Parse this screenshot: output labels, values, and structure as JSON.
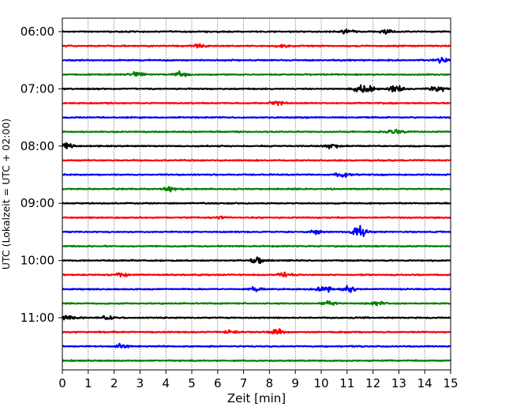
{
  "chart_data": {
    "type": "line",
    "chart_kind": "helicorder (seismogram drum plot)",
    "xlabel": "Zeit  [min]",
    "ylabel": "UTC (Lokalzeit = UTC + 02:00)",
    "xlim": [
      0,
      15
    ],
    "x_ticks": [
      "0",
      "1",
      "2",
      "3",
      "4",
      "5",
      "6",
      "7",
      "8",
      "9",
      "10",
      "11",
      "12",
      "13",
      "14",
      "15"
    ],
    "y_ticks": [
      "06:00",
      "07:00",
      "08:00",
      "09:00",
      "10:00",
      "11:00"
    ],
    "y_tick_rows": [
      0,
      4,
      8,
      12,
      16,
      20
    ],
    "grid": "vertical dotted lines at each minute",
    "legend": "none",
    "trace_minutes": 15,
    "row_start_times": [
      "06:00",
      "06:15",
      "06:30",
      "06:45",
      "07:00",
      "07:15",
      "07:30",
      "07:45",
      "08:00",
      "08:15",
      "08:30",
      "08:45",
      "09:00",
      "09:15",
      "09:30",
      "09:45",
      "10:00",
      "10:15",
      "10:30",
      "10:45",
      "11:00",
      "11:15",
      "11:30",
      "11:45"
    ],
    "color_cycle": [
      "#000000",
      "#ff0000",
      "#0000ff",
      "#008000"
    ],
    "events": [
      {
        "row": 0,
        "minute": 11.0,
        "amplitude": 0.45
      },
      {
        "row": 0,
        "minute": 12.5,
        "amplitude": 0.4
      },
      {
        "row": 1,
        "minute": 5.3,
        "amplitude": 0.5
      },
      {
        "row": 1,
        "minute": 8.5,
        "amplitude": 0.3
      },
      {
        "row": 3,
        "minute": 4.6,
        "amplitude": 0.6
      },
      {
        "row": 3,
        "minute": 2.9,
        "amplitude": 0.5
      },
      {
        "row": 2,
        "minute": 14.6,
        "amplitude": 0.5
      },
      {
        "row": 4,
        "minute": 11.5,
        "amplitude": 0.8
      },
      {
        "row": 4,
        "minute": 11.9,
        "amplitude": 0.7
      },
      {
        "row": 4,
        "minute": 12.9,
        "amplitude": 0.8
      },
      {
        "row": 4,
        "minute": 14.5,
        "amplitude": 0.9
      },
      {
        "row": 5,
        "minute": 8.3,
        "amplitude": 0.6
      },
      {
        "row": 7,
        "minute": 12.9,
        "amplitude": 0.5
      },
      {
        "row": 8,
        "minute": 0.15,
        "amplitude": 0.7
      },
      {
        "row": 8,
        "minute": 10.4,
        "amplitude": 0.45
      },
      {
        "row": 10,
        "minute": 10.8,
        "amplitude": 0.6
      },
      {
        "row": 11,
        "minute": 4.2,
        "amplitude": 0.5
      },
      {
        "row": 13,
        "minute": 6.2,
        "amplitude": 0.3
      },
      {
        "row": 14,
        "minute": 9.8,
        "amplitude": 0.6
      },
      {
        "row": 14,
        "minute": 11.45,
        "amplitude": 1.4
      },
      {
        "row": 16,
        "minute": 7.55,
        "amplitude": 0.7
      },
      {
        "row": 17,
        "minute": 2.3,
        "amplitude": 0.45
      },
      {
        "row": 17,
        "minute": 8.6,
        "amplitude": 0.55
      },
      {
        "row": 18,
        "minute": 7.5,
        "amplitude": 0.45
      },
      {
        "row": 18,
        "minute": 10.1,
        "amplitude": 0.75
      },
      {
        "row": 18,
        "minute": 11.1,
        "amplitude": 0.75
      },
      {
        "row": 19,
        "minute": 10.3,
        "amplitude": 0.5
      },
      {
        "row": 19,
        "minute": 12.2,
        "amplitude": 0.45
      },
      {
        "row": 20,
        "minute": 0.2,
        "amplitude": 0.5
      },
      {
        "row": 20,
        "minute": 1.75,
        "amplitude": 0.55
      },
      {
        "row": 21,
        "minute": 6.5,
        "amplitude": 0.45
      },
      {
        "row": 21,
        "minute": 8.3,
        "amplitude": 0.5
      },
      {
        "row": 22,
        "minute": 2.3,
        "amplitude": 0.4
      }
    ]
  }
}
